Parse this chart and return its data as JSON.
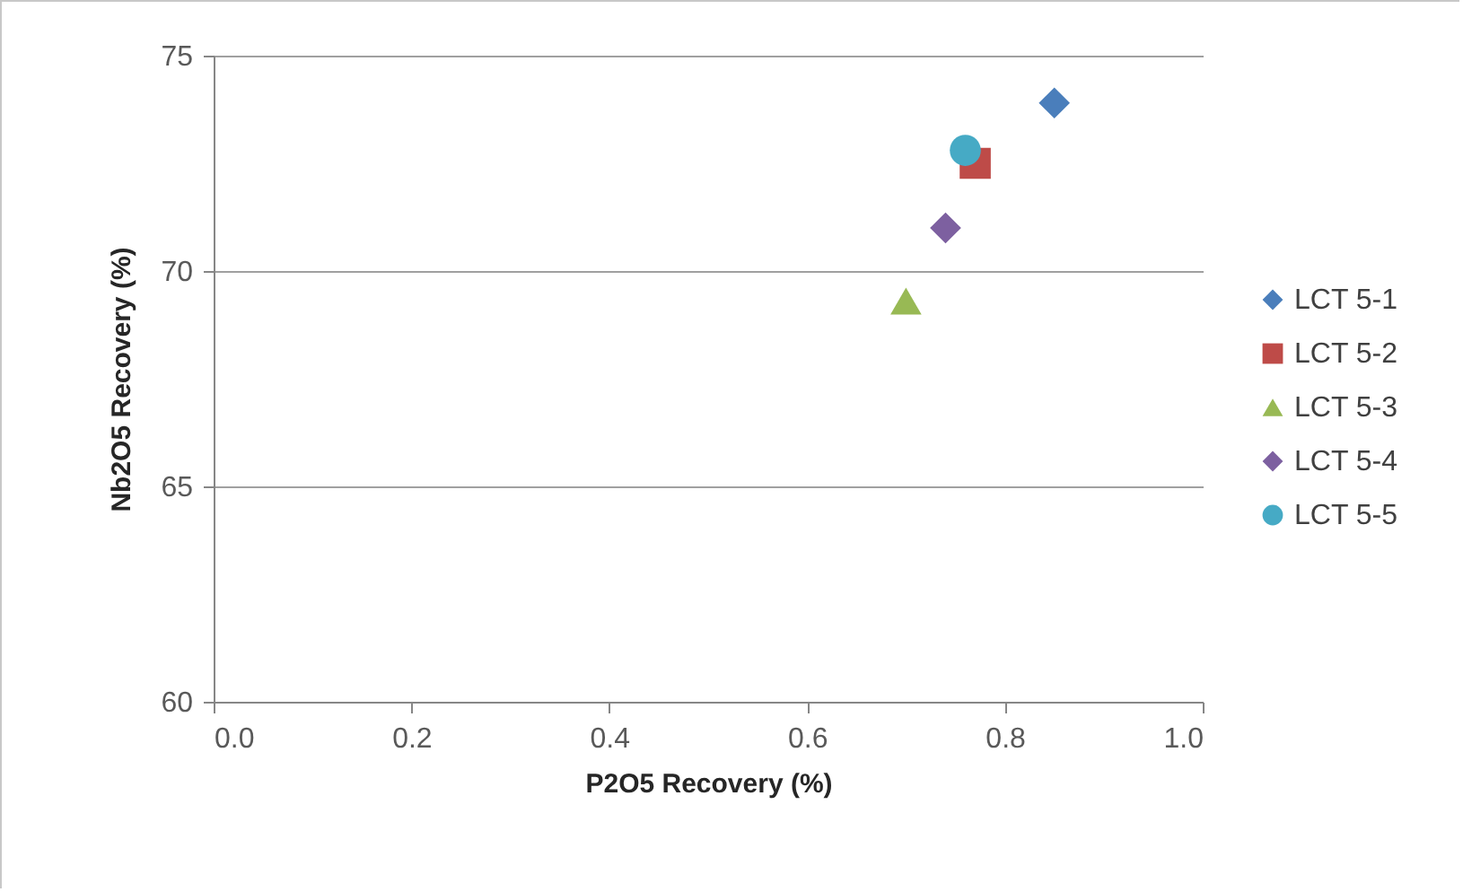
{
  "chart_data": {
    "type": "scatter",
    "xlabel": "P2O5 Recovery (%)",
    "ylabel": "Nb2O5 Recovery (%)",
    "xlim": [
      0,
      1
    ],
    "xticks": [
      {
        "value": 0,
        "label": "0.0"
      },
      {
        "value": 0.2,
        "label": "0.2"
      },
      {
        "value": 0.4,
        "label": "0.4"
      },
      {
        "value": 0.6,
        "label": "0.6"
      },
      {
        "value": 0.8,
        "label": "0.8"
      },
      {
        "value": 1,
        "label": "1.0"
      }
    ],
    "ylim": [
      60,
      75
    ],
    "yticks": [
      60,
      65,
      70,
      75
    ],
    "grid": "y",
    "legend": "right",
    "series": [
      {
        "name": "LCT 5-1",
        "color": "#4a7ebb",
        "marker": "diamond",
        "x": [
          0.85
        ],
        "values": [
          73.9
        ]
      },
      {
        "name": "LCT 5-2",
        "color": "#be4b48",
        "marker": "square",
        "x": [
          0.77
        ],
        "values": [
          72.5
        ]
      },
      {
        "name": "LCT 5-3",
        "color": "#98b954",
        "marker": "triangle",
        "x": [
          0.7
        ],
        "values": [
          69.3
        ]
      },
      {
        "name": "LCT 5-4",
        "color": "#7d60a0",
        "marker": "diamond",
        "x": [
          0.74
        ],
        "values": [
          71.0
        ]
      },
      {
        "name": "LCT 5-5",
        "color": "#46aac5",
        "marker": "circle",
        "x": [
          0.76
        ],
        "values": [
          72.8
        ]
      }
    ]
  }
}
